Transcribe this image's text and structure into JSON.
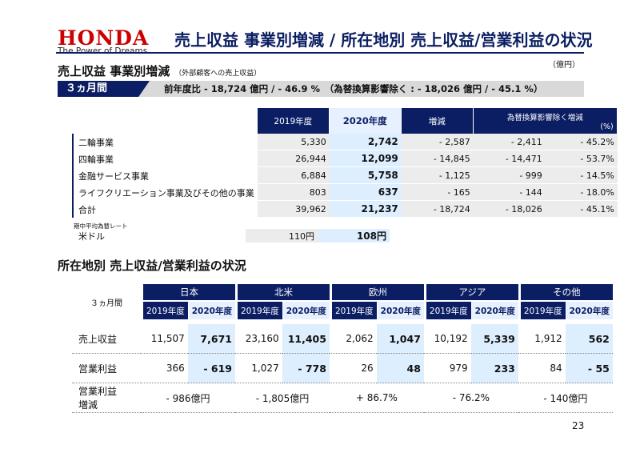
{
  "brand": {
    "logo_text": "HONDA",
    "tagline": "The Power of Dreams",
    "color": "#cc0000"
  },
  "page": {
    "title": "売上収益 事業別増減 / 所在地別 売上収益/営業利益の状況",
    "number": "23"
  },
  "colors": {
    "navy": "#0b1e63",
    "highlight": "#ddeeff",
    "grey": "#ececec"
  },
  "section1": {
    "title": "売上収益 事業別増減",
    "subtitle": "（外部顧客への売上収益）",
    "unit": "（億円）",
    "period": "３ヵ月間",
    "summary": "前年度比 - 18,724 億円 / - 46.9 %　（為替換算影響除く : - 18,026 億円 / - 45.1 %）",
    "headers": {
      "y2019": "2019年度",
      "y2020": "2020年度",
      "change": "増減",
      "fx_line1": "為替換算影響除く増減",
      "fx_line2": "(%)"
    },
    "rows": [
      {
        "label": "二輪事業",
        "y2019": "5,330",
        "y2020": "2,742",
        "change": "- 2,587",
        "fx": "- 2,411",
        "pct": "- 45.2%"
      },
      {
        "label": "四輪事業",
        "y2019": "26,944",
        "y2020": "12,099",
        "change": "- 14,845",
        "fx": "- 14,471",
        "pct": "- 53.7%"
      },
      {
        "label": "金融サービス事業",
        "y2019": "6,884",
        "y2020": "5,758",
        "change": "- 1,125",
        "fx": "- 999",
        "pct": "- 14.5%"
      },
      {
        "label": "ライフクリエーション事業及びその他の事業",
        "y2019": "803",
        "y2020": "637",
        "change": "- 165",
        "fx": "- 144",
        "pct": "- 18.0%"
      },
      {
        "label": "合計",
        "y2019": "39,962",
        "y2020": "21,237",
        "change": "- 18,724",
        "fx": "- 18,026",
        "pct": "- 45.1%"
      }
    ],
    "rate": {
      "caption": "期中平均為替レート",
      "label": "米ドル",
      "y2019": "110円",
      "y2020": "108円"
    }
  },
  "section2": {
    "title": "所在地別 売上収益/営業利益の状況",
    "period": "３ヵ月間",
    "year_prev": "2019年度",
    "year_curr": "2020年度",
    "regions": [
      "日本",
      "北米",
      "欧州",
      "アジア",
      "その他"
    ],
    "revenue": {
      "label": "売上収益",
      "values": [
        "11,507",
        "7,671",
        "23,160",
        "11,405",
        "2,062",
        "1,047",
        "10,192",
        "5,339",
        "1,912",
        "562"
      ]
    },
    "op_income": {
      "label": "営業利益",
      "values": [
        "366",
        "- 619",
        "1,027",
        "- 778",
        "26",
        "48",
        "979",
        "233",
        "84",
        "- 55"
      ]
    },
    "op_change": {
      "label_line1": "営業利益",
      "label_line2": "増減",
      "values": [
        "- 986億円",
        "- 1,805億円",
        "+ 86.7%",
        "- 76.2%",
        "- 140億円"
      ]
    }
  }
}
